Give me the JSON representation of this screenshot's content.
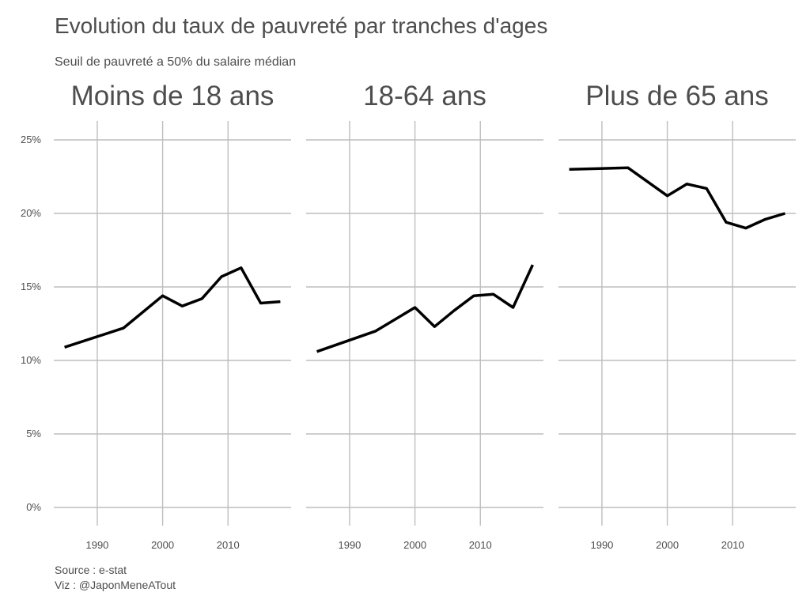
{
  "chart_data": {
    "type": "line",
    "title": "Evolution du taux de pauvreté par tranches d'ages",
    "subtitle": "Seuil de pauvreté a 50% du salaire médian",
    "caption_lines": [
      "Source : e-stat",
      "Viz : @JaponMeneATout"
    ],
    "xlabel": "",
    "ylabel": "",
    "x_ticks": [
      1990,
      2000,
      2010
    ],
    "y_ticks": [
      0,
      5,
      10,
      15,
      20,
      25
    ],
    "y_tick_labels": [
      "0%",
      "5%",
      "10%",
      "15%",
      "20%",
      "25%"
    ],
    "xlim": [
      1985,
      2018
    ],
    "ylim": [
      0,
      25
    ],
    "grid": true,
    "line_color": "#000000",
    "grid_color": "#bebebe",
    "panels": [
      {
        "title": "Moins de 18 ans",
        "x": [
          1985,
          1994,
          2000,
          2003,
          2006,
          2009,
          2012,
          2015,
          2018
        ],
        "values": [
          10.9,
          12.2,
          14.4,
          13.7,
          14.2,
          15.7,
          16.3,
          13.9,
          14.0
        ]
      },
      {
        "title": "18-64 ans",
        "x": [
          1985,
          1994,
          2000,
          2003,
          2006,
          2009,
          2012,
          2015,
          2018
        ],
        "values": [
          10.6,
          12.0,
          13.6,
          12.3,
          13.4,
          14.4,
          14.5,
          13.6,
          16.5
        ]
      },
      {
        "title": "Plus de 65 ans",
        "x": [
          1985,
          1994,
          2000,
          2003,
          2006,
          2009,
          2012,
          2015,
          2018
        ],
        "values": [
          23.0,
          23.1,
          21.2,
          22.0,
          21.7,
          19.4,
          19.0,
          19.6,
          20.0
        ]
      }
    ]
  }
}
